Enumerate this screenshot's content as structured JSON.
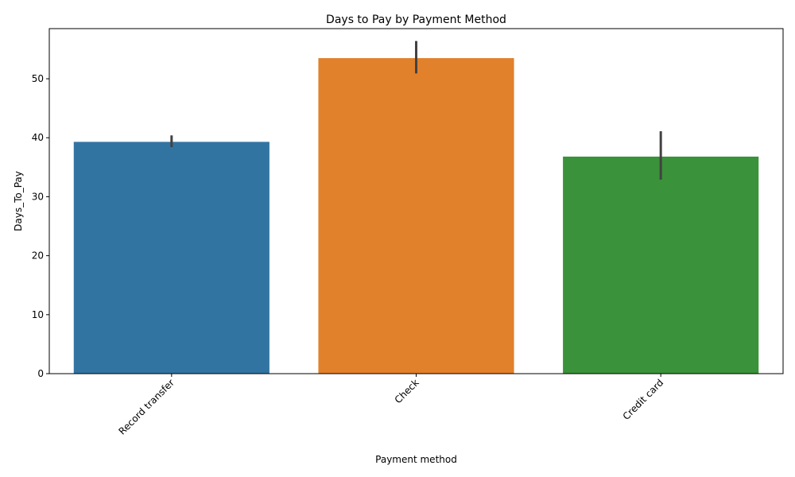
{
  "chart_data": {
    "type": "bar",
    "title": "Days to Pay by Payment Method",
    "xlabel": "Payment method",
    "ylabel": "Days_To_Pay",
    "categories": [
      "Record transfer",
      "Check",
      "Credit card"
    ],
    "values": [
      39.3,
      53.5,
      36.8
    ],
    "error_bars": [
      {
        "low": 38.4,
        "high": 40.4
      },
      {
        "low": 50.9,
        "high": 56.4
      },
      {
        "low": 32.9,
        "high": 41.1
      }
    ],
    "colors": [
      "#3274a1",
      "#e1812c",
      "#3a923a"
    ],
    "error_bar_color": "#424242",
    "ylim": [
      0,
      58.5
    ],
    "yticks": [
      0,
      10,
      20,
      30,
      40,
      50
    ],
    "ytick_labels": [
      "0",
      "10",
      "20",
      "30",
      "40",
      "50"
    ],
    "tick_label_rotation_degrees": 45,
    "grid": false,
    "legend": "none"
  }
}
